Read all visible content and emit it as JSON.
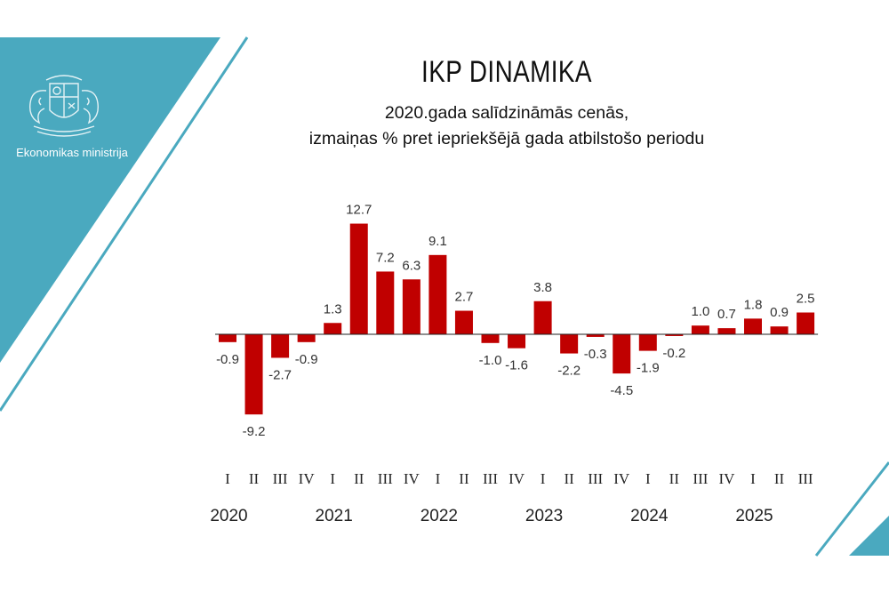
{
  "logo": {
    "org_name": "Ekonomikas ministrija",
    "emblem": "latvia-coat-of-arms-icon"
  },
  "colors": {
    "accent_teal": "#4aa9bf",
    "bar_red": "#c00000"
  },
  "chart_data": {
    "type": "bar",
    "title": "IKP DINAMIKA",
    "subtitle_line1": "2020.gada salīdzināmās cenās,",
    "subtitle_line2": "izmaiņas % pret iepriekšējā gada atbilstošo periodu",
    "categories": [
      "I",
      "II",
      "III",
      "IV",
      "I",
      "II",
      "III",
      "IV",
      "I",
      "II",
      "III",
      "IV",
      "I",
      "II",
      "III",
      "IV",
      "I",
      "II",
      "III",
      "IV",
      "I",
      "II",
      "III"
    ],
    "years": [
      {
        "label": "2020",
        "start": 0
      },
      {
        "label": "2021",
        "start": 4
      },
      {
        "label": "2022",
        "start": 8
      },
      {
        "label": "2023",
        "start": 12
      },
      {
        "label": "2024",
        "start": 16
      },
      {
        "label": "2025",
        "start": 20
      }
    ],
    "values": [
      -0.9,
      -9.2,
      -2.7,
      -0.9,
      1.3,
      12.7,
      7.2,
      6.3,
      9.1,
      2.7,
      -1.0,
      -1.6,
      3.8,
      -2.2,
      -0.3,
      -4.5,
      -1.9,
      -0.2,
      1.0,
      0.7,
      1.8,
      0.9,
      2.5
    ],
    "value_labels": [
      "-0.9",
      "-9.2",
      "-2.7",
      "-0.9",
      "1.3",
      "12.7",
      "7.2",
      "6.3",
      "9.1",
      "2.7",
      "-1.0",
      "-1.6",
      "3.8",
      "-2.2",
      "-0.3",
      "-4.5",
      "-1.9",
      "-0.2",
      "1.0",
      "0.7",
      "1.8",
      "0.9",
      "2.5"
    ],
    "xlabel": "",
    "ylabel": "",
    "grid": false,
    "legend": "none"
  }
}
